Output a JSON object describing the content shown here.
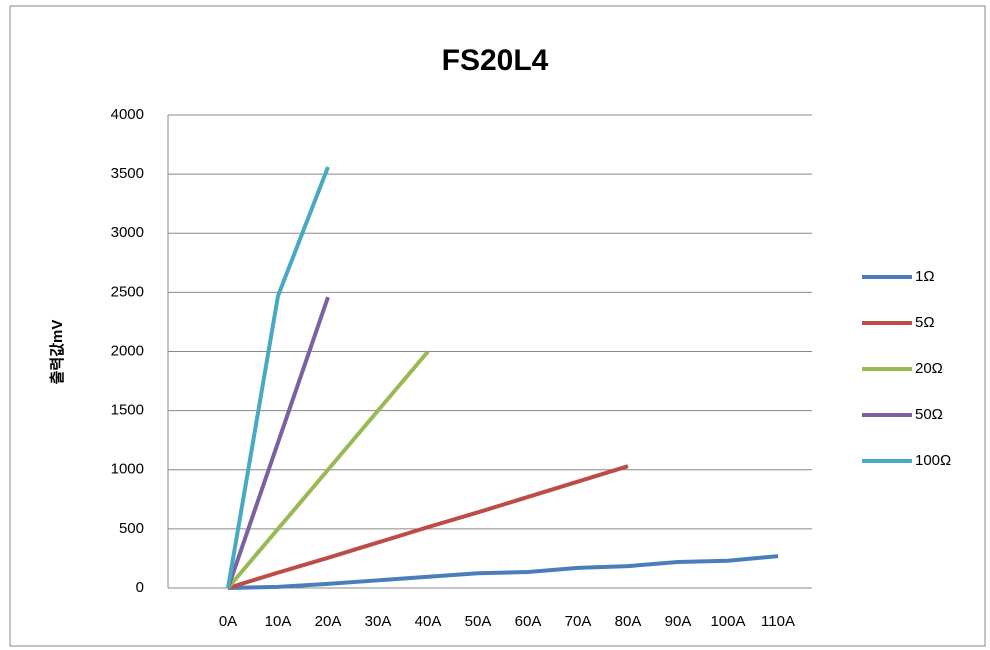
{
  "chart_data": {
    "type": "line",
    "title": "FS20L4",
    "y_label": "출력값mV",
    "categories": [
      "0A",
      "10A",
      "20A",
      "30A",
      "40A",
      "50A",
      "60A",
      "70A",
      "80A",
      "90A",
      "100A",
      "110A"
    ],
    "series": [
      {
        "name": "1Ω",
        "color": "#4a7ebb",
        "values": [
          0,
          10,
          35,
          65,
          95,
          125,
          135,
          170,
          185,
          220,
          230,
          270
        ]
      },
      {
        "name": "5Ω",
        "color": "#be4b48",
        "values": [
          0,
          130,
          255,
          385,
          515,
          640,
          770,
          900,
          1030,
          null,
          null,
          null
        ]
      },
      {
        "name": "20Ω",
        "color": "#98b954",
        "values": [
          0,
          500,
          1000,
          1500,
          2000,
          null,
          null,
          null,
          null,
          null,
          null,
          null
        ]
      },
      {
        "name": "50Ω",
        "color": "#7d60a0",
        "values": [
          0,
          1230,
          2460,
          null,
          null,
          null,
          null,
          null,
          null,
          null,
          null,
          null
        ]
      },
      {
        "name": "100Ω",
        "color": "#46aac5",
        "values": [
          0,
          2470,
          3560,
          null,
          null,
          null,
          null,
          null,
          null,
          null,
          null,
          null
        ]
      }
    ],
    "ylim": [
      0,
      4000
    ],
    "yticks": [
      0,
      500,
      1000,
      1500,
      2000,
      2500,
      3000,
      3500,
      4000
    ],
    "grid": true,
    "legend": "right"
  }
}
